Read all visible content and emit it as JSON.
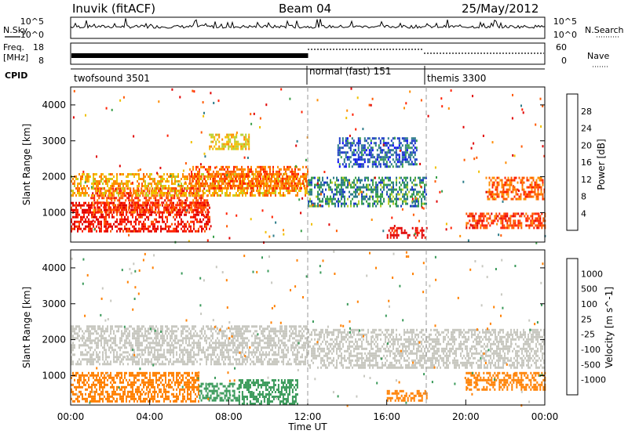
{
  "header": {
    "station": "Inuvik (fitACF)",
    "beam": "Beam 04",
    "date": "25/May/2012"
  },
  "panels": {
    "nsky_label": "N.Sky",
    "nsky_ticks": [
      "10^5",
      "10^0"
    ],
    "nsearch_label": "N.Search",
    "freq_label_top": "Freq.",
    "freq_label_unit": "[MHz]",
    "freq_ticks": [
      "18",
      "8"
    ],
    "nave_label": "Nave",
    "nave_ticks": [
      "60",
      "0"
    ],
    "cpid_label": "CPID",
    "cpid_segments": [
      {
        "label": "twofsound 3501",
        "start_hour": 0,
        "end_hour": 12
      },
      {
        "label": "normal (fast) 151",
        "start_hour": 12,
        "end_hour": 18
      },
      {
        "label": "themis 3300",
        "start_hour": 18,
        "end_hour": 24
      }
    ]
  },
  "colorbars": {
    "power": {
      "label": "Power [dB]",
      "ticks": [
        "28",
        "24",
        "20",
        "16",
        "12",
        "8",
        "4"
      ],
      "colors": [
        "#0000ff",
        "#1e3cc8",
        "#2e7d8a",
        "#3aa04a",
        "#b8d030",
        "#f0c000",
        "#ff8c00",
        "#ff5a00",
        "#ff2000",
        "#e00000"
      ]
    },
    "velocity": {
      "label": "Velocity [m s^-1]",
      "ticks": [
        "1000",
        "500",
        "100",
        "25",
        "-25",
        "-100",
        "-500",
        "-1000"
      ],
      "colors": [
        "#1e3ca0",
        "#2e6a9c",
        "#3a9a5a",
        "#70c040",
        "#c8c8c0",
        "#c8c8c0",
        "#f0a020",
        "#ff8000",
        "#ff4000",
        "#ff0000"
      ]
    }
  },
  "chart_data": [
    {
      "type": "heatmap",
      "title": "",
      "xlabel": "",
      "ylabel": "Slant Range [km]",
      "xlim": [
        0,
        24
      ],
      "ylim": [
        180,
        4500
      ],
      "yticks": [
        "1000",
        "2000",
        "3000",
        "4000"
      ],
      "value": "Power [dB]",
      "regions": [
        {
          "x": [
            0.0,
            7.0
          ],
          "y": [
            500,
            1300
          ],
          "value": 27
        },
        {
          "x": [
            1.0,
            7.0
          ],
          "y": [
            1000,
            1700
          ],
          "value": 24
        },
        {
          "x": [
            0.0,
            12.0
          ],
          "y": [
            1500,
            2100
          ],
          "value": 18
        },
        {
          "x": [
            6.0,
            12.0
          ],
          "y": [
            1700,
            2300
          ],
          "value": 22
        },
        {
          "x": [
            12.0,
            18.0
          ],
          "y": [
            1200,
            2000
          ],
          "value": 9
        },
        {
          "x": [
            13.5,
            17.5
          ],
          "y": [
            2300,
            3100
          ],
          "value": 6
        },
        {
          "x": [
            16.0,
            18.0
          ],
          "y": [
            300,
            600
          ],
          "value": 28
        },
        {
          "x": [
            21.0,
            24.0
          ],
          "y": [
            1400,
            2000
          ],
          "value": 22
        },
        {
          "x": [
            20.0,
            24.0
          ],
          "y": [
            600,
            1000
          ],
          "value": 24
        },
        {
          "x": [
            7.0,
            9.0
          ],
          "y": [
            2800,
            3200
          ],
          "value": 16
        }
      ]
    },
    {
      "type": "heatmap",
      "title": "",
      "xlabel": "Time UT",
      "ylabel": "Slant Range [km]",
      "xlim": [
        0,
        24
      ],
      "ylim": [
        180,
        4500
      ],
      "xticks": [
        "00:00",
        "04:00",
        "08:00",
        "12:00",
        "16:00",
        "20:00",
        "00:00"
      ],
      "yticks": [
        "1000",
        "2000",
        "3000",
        "4000"
      ],
      "value": "Velocity [m s^-1]",
      "regions": [
        {
          "x": [
            0.0,
            12.0
          ],
          "y": [
            1300,
            2400
          ],
          "value": 0
        },
        {
          "x": [
            0.0,
            6.5
          ],
          "y": [
            300,
            1100
          ],
          "value": -300
        },
        {
          "x": [
            8.5,
            11.5
          ],
          "y": [
            200,
            900
          ],
          "value": 150
        },
        {
          "x": [
            6.5,
            8.5
          ],
          "y": [
            300,
            800
          ],
          "value": 200
        },
        {
          "x": [
            12.0,
            24.0
          ],
          "y": [
            1200,
            2300
          ],
          "value": 0
        },
        {
          "x": [
            16.0,
            18.0
          ],
          "y": [
            300,
            600
          ],
          "value": -300
        },
        {
          "x": [
            20.0,
            24.0
          ],
          "y": [
            600,
            1100
          ],
          "value": -400
        }
      ]
    }
  ]
}
